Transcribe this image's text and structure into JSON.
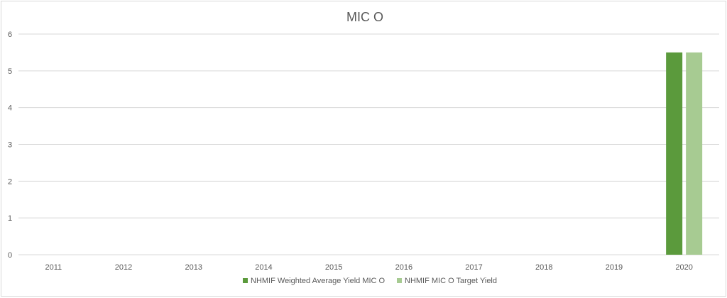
{
  "chart_data": {
    "type": "bar",
    "title": "MIC O",
    "categories": [
      "2011",
      "2012",
      "2013",
      "2014",
      "2015",
      "2016",
      "2017",
      "2018",
      "2019",
      "2020"
    ],
    "series": [
      {
        "name": "NHMIF Weighted Average Yield MIC O",
        "color": "#5b9a3c",
        "values": [
          null,
          null,
          null,
          null,
          null,
          null,
          null,
          null,
          null,
          5.5
        ]
      },
      {
        "name": "NHMIF MIC O Target Yield",
        "color": "#a7cb92",
        "values": [
          null,
          null,
          null,
          null,
          null,
          null,
          null,
          null,
          null,
          5.5
        ]
      }
    ],
    "ylim": [
      0,
      6
    ],
    "yticks": [
      "0",
      "1",
      "2",
      "3",
      "4",
      "5",
      "6"
    ],
    "grid": true,
    "legend_position": "bottom"
  }
}
